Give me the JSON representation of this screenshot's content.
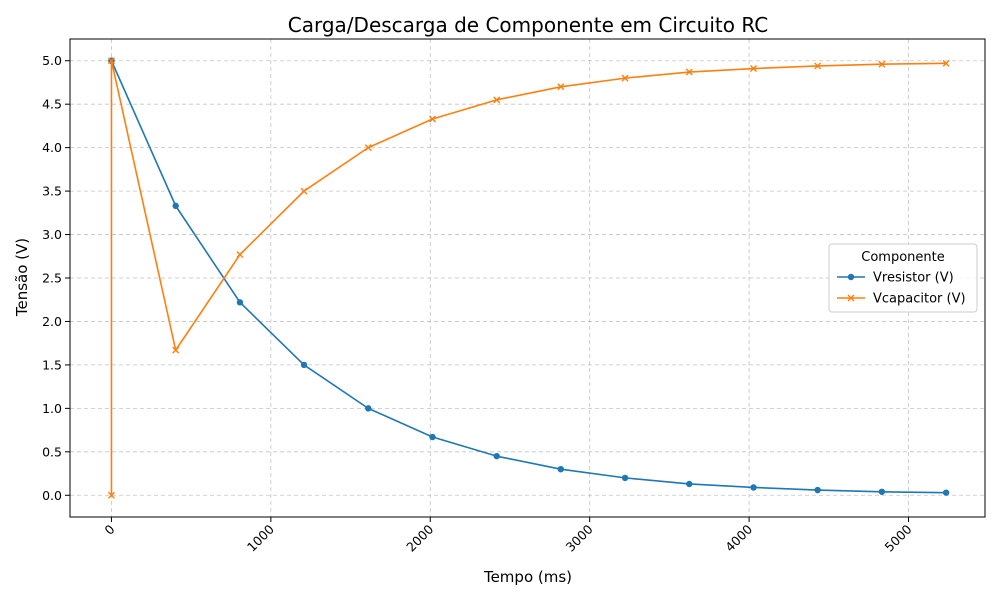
{
  "chart_data": {
    "type": "line",
    "title": "Carga/Descarga de Componente em Circuito RC",
    "xlabel": "Tempo (ms)",
    "ylabel": "Tensão (V)",
    "xlim": [
      -260,
      5480
    ],
    "ylim": [
      -0.25,
      5.25
    ],
    "xticks": [
      0,
      1000,
      2000,
      3000,
      4000,
      5000
    ],
    "yticks": [
      0.0,
      0.5,
      1.0,
      1.5,
      2.0,
      2.5,
      3.0,
      3.5,
      4.0,
      4.5,
      5.0
    ],
    "ytick_labels": [
      "0.0",
      "0.5",
      "1.0",
      "1.5",
      "2.0",
      "2.5",
      "3.0",
      "3.5",
      "4.0",
      "4.5",
      "5.0"
    ],
    "xtick_rotation": 45,
    "grid": true,
    "legend": {
      "title": "Componente",
      "position": "center-right"
    },
    "x": [
      0,
      0,
      403,
      806,
      1208,
      1611,
      2014,
      2417,
      2819,
      3222,
      3625,
      4028,
      4430,
      4833,
      5236
    ],
    "series": [
      {
        "name": "Vresistor (V)",
        "color": "#1f77b4",
        "marker": "circle",
        "values": [
          5.0,
          5.0,
          3.33,
          2.22,
          1.5,
          1.0,
          0.67,
          0.45,
          0.3,
          0.2,
          0.13,
          0.09,
          0.06,
          0.04,
          0.03
        ]
      },
      {
        "name": "Vcapacitor (V)",
        "color": "#ff7f0e",
        "marker": "x",
        "values": [
          0.0,
          5.0,
          1.67,
          2.77,
          3.5,
          4.0,
          4.33,
          4.55,
          4.7,
          4.8,
          4.87,
          4.91,
          4.94,
          4.96,
          4.97
        ]
      }
    ]
  }
}
